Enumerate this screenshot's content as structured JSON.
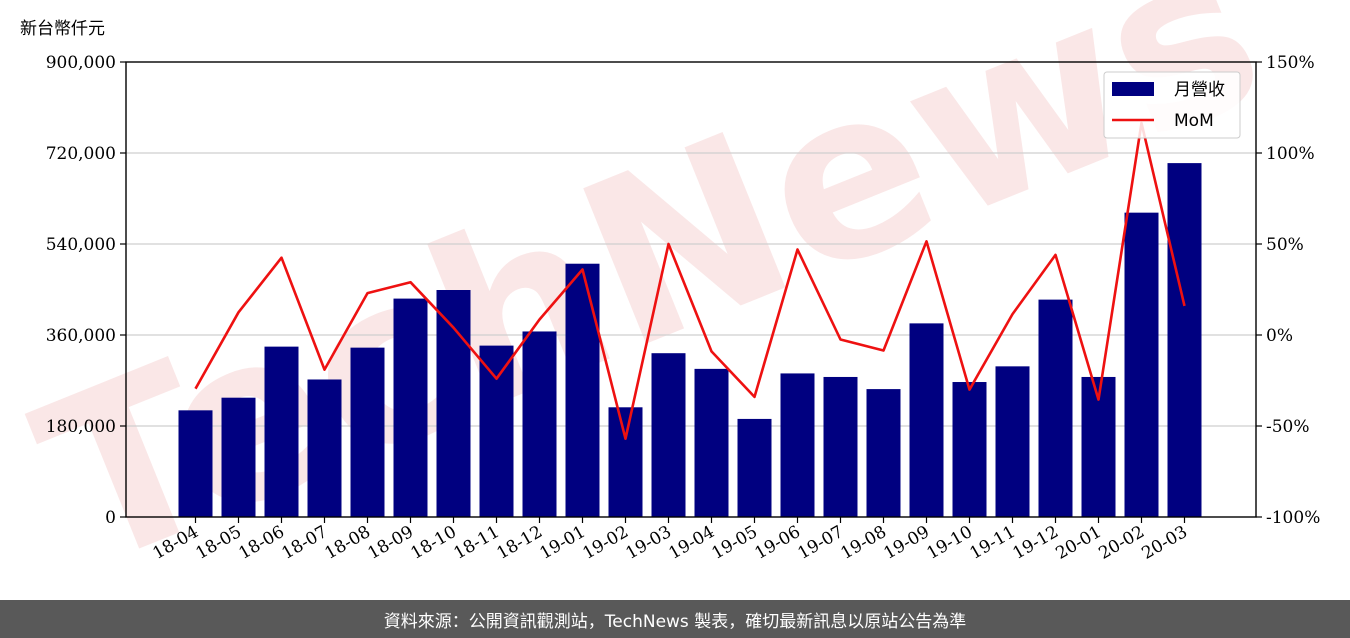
{
  "chart_data": {
    "type": "bar",
    "unit_label": "新台幣仟元",
    "categories": [
      "18-04",
      "18-05",
      "18-06",
      "18-07",
      "18-08",
      "18-09",
      "18-10",
      "18-11",
      "18-12",
      "19-01",
      "19-02",
      "19-03",
      "19-04",
      "19-05",
      "19-06",
      "19-07",
      "19-08",
      "19-09",
      "19-10",
      "19-11",
      "19-12",
      "20-01",
      "20-02",
      "20-03"
    ],
    "series": [
      {
        "name": "月營收",
        "axis": "left",
        "color": "#000080",
        "values": [
          211000,
          236000,
          337000,
          272000,
          335000,
          432000,
          449000,
          339000,
          367000,
          501000,
          217000,
          324000,
          293000,
          194000,
          284000,
          277000,
          253000,
          383000,
          267000,
          298000,
          430000,
          277000,
          602000,
          700000
        ]
      },
      {
        "name": "MoM",
        "axis": "right",
        "color": "#ee1111",
        "values": [
          -29.5,
          12.5,
          42.5,
          -19,
          23,
          29,
          4,
          -24,
          8.5,
          36,
          -57,
          50,
          -9,
          -34,
          47,
          -2.5,
          -8.5,
          51.5,
          -30,
          11.5,
          44,
          -35.5,
          116.5,
          16
        ]
      }
    ],
    "y_left": {
      "min": 0,
      "max": 900000,
      "ticks": [
        "0",
        "180,000",
        "360,000",
        "540,000",
        "720,000",
        "900,000"
      ]
    },
    "y_right": {
      "min": -100,
      "max": 150,
      "ticks": [
        "-100%",
        "-50%",
        "0%",
        "50%",
        "100%",
        "150%"
      ]
    },
    "grid": "horizontal",
    "legend_position": "top-right"
  },
  "watermark": "TechNews",
  "footer": {
    "text": "資料來源：公開資訊觀測站，TechNews 製表，確切最新訊息以原站公告為準"
  }
}
